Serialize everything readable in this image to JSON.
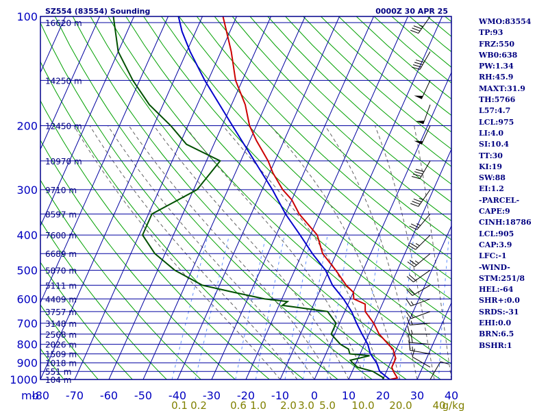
{
  "header": {
    "station": "SZ554 (83554) Sounding",
    "time": "0000Z 30 APR 25"
  },
  "stats": [
    "WMO:83554",
    "TP:93",
    "FRZ:550",
    "WB0:638",
    "PW:1.34",
    "RH:45.9",
    "MAXT:31.9",
    "TH:5766",
    "L57:4.7",
    "LCL:975",
    "LI:4.0",
    "SI:10.4",
    "TT:30",
    "KI:19",
    "SW:88",
    "EI:1.2",
    "-PARCEL-",
    "CAPE:9",
    "CINH:18786",
    "LCL:905",
    "CAP:3.9",
    "LFC:-1",
    "-WIND-",
    "STM:251/8",
    "HEL:-64",
    "SHR+:0.0",
    "SRDS:-31",
    "EHI:0.0",
    "BRN:6.5",
    "BSHR:1"
  ],
  "chart_data": {
    "type": "line",
    "title": "SZ554 (83554) Sounding",
    "xlabel": "",
    "ylabel": "mb",
    "x_ticks": [
      "-80",
      "-70",
      "-60",
      "-50",
      "-40",
      "-30",
      "-20",
      "-10",
      "0",
      "10",
      "20",
      "30",
      "40"
    ],
    "y_ticks": [
      "100",
      "200",
      "300",
      "400",
      "500",
      "600",
      "700",
      "800",
      "900",
      "1000"
    ],
    "y_axis_unit": "mb",
    "xlim": [
      -80,
      40
    ],
    "ylim": [
      1000,
      100
    ],
    "y_scale": "log",
    "mixing_ratio_labels": [
      "0.1",
      "0.2",
      "0.6",
      "1.0",
      "2.0",
      "3.0",
      "5.0",
      "10.0",
      "20.0",
      "40",
      "g/kg"
    ],
    "height_levels": [
      {
        "p": 104,
        "label": "16620 m"
      },
      {
        "p": 150,
        "label": "14250 m"
      },
      {
        "p": 200,
        "label": "12450 m"
      },
      {
        "p": 250,
        "label": "10970 m"
      },
      {
        "p": 300,
        "label": "9710 m"
      },
      {
        "p": 350,
        "label": "8597 m"
      },
      {
        "p": 400,
        "label": "7600 m"
      },
      {
        "p": 450,
        "label": "6689 m"
      },
      {
        "p": 500,
        "label": "5870 m"
      },
      {
        "p": 550,
        "label": "5111 m"
      },
      {
        "p": 600,
        "label": "4409 m"
      },
      {
        "p": 650,
        "label": "3757 m"
      },
      {
        "p": 700,
        "label": "3148 m"
      },
      {
        "p": 750,
        "label": "2568 m"
      },
      {
        "p": 800,
        "label": "2026 m"
      },
      {
        "p": 850,
        "label": "1509 m"
      },
      {
        "p": 900,
        "label": "1018 m"
      },
      {
        "p": 950,
        "label": "551 m"
      },
      {
        "p": 1000,
        "label": "104 m"
      }
    ],
    "series": [
      {
        "color": "#cc0000",
        "points": [
          [
            1000,
            22
          ],
          [
            990,
            24
          ],
          [
            950,
            22
          ],
          [
            925,
            21
          ],
          [
            900,
            21
          ],
          [
            875,
            21
          ],
          [
            850,
            20
          ],
          [
            825,
            19
          ],
          [
            800,
            17
          ],
          [
            750,
            13
          ],
          [
            700,
            10
          ],
          [
            650,
            6
          ],
          [
            620,
            5
          ],
          [
            600,
            1
          ],
          [
            575,
            0
          ],
          [
            550,
            -3
          ],
          [
            500,
            -8
          ],
          [
            450,
            -14
          ],
          [
            400,
            -18
          ],
          [
            350,
            -26
          ],
          [
            320,
            -30
          ],
          [
            300,
            -34
          ],
          [
            270,
            -39
          ],
          [
            250,
            -42
          ],
          [
            220,
            -48
          ],
          [
            200,
            -52
          ],
          [
            175,
            -56
          ],
          [
            150,
            -62
          ],
          [
            125,
            -67
          ],
          [
            110,
            -71
          ],
          [
            100,
            -74
          ]
        ]
      },
      {
        "color": "#005000",
        "points": [
          [
            1000,
            20
          ],
          [
            990,
            20
          ],
          [
            950,
            16
          ],
          [
            925,
            11
          ],
          [
            900,
            9
          ],
          [
            885,
            8
          ],
          [
            860,
            13
          ],
          [
            850,
            7
          ],
          [
            825,
            6
          ],
          [
            800,
            3
          ],
          [
            750,
            -1
          ],
          [
            700,
            -1
          ],
          [
            650,
            -5
          ],
          [
            625,
            -19
          ],
          [
            610,
            -18
          ],
          [
            600,
            -25
          ],
          [
            575,
            -35
          ],
          [
            550,
            -45
          ],
          [
            500,
            -55
          ],
          [
            450,
            -63
          ],
          [
            400,
            -69
          ],
          [
            350,
            -69
          ],
          [
            300,
            -59
          ],
          [
            250,
            -56
          ],
          [
            225,
            -68
          ],
          [
            200,
            -75
          ],
          [
            175,
            -84
          ],
          [
            150,
            -92
          ],
          [
            125,
            -100
          ],
          [
            100,
            -106
          ]
        ]
      },
      {
        "color": "#0000cc",
        "points": [
          [
            1000,
            22
          ],
          [
            950,
            18
          ],
          [
            900,
            16
          ],
          [
            850,
            13
          ],
          [
            800,
            11
          ],
          [
            750,
            8
          ],
          [
            700,
            5
          ],
          [
            650,
            2
          ],
          [
            600,
            -2
          ],
          [
            550,
            -7
          ],
          [
            500,
            -11
          ],
          [
            450,
            -17
          ],
          [
            400,
            -23
          ],
          [
            350,
            -30
          ],
          [
            300,
            -37
          ],
          [
            250,
            -46
          ],
          [
            200,
            -57
          ],
          [
            150,
            -71
          ],
          [
            125,
            -79
          ],
          [
            110,
            -84
          ],
          [
            100,
            -87
          ]
        ]
      }
    ],
    "wind_barbs": [
      {
        "p": 1000,
        "dir": 30,
        "kt": 10
      },
      {
        "p": 925,
        "dir": 300,
        "kt": 10
      },
      {
        "p": 850,
        "dir": 280,
        "kt": 15
      },
      {
        "p": 800,
        "dir": 275,
        "kt": 20
      },
      {
        "p": 750,
        "dir": 270,
        "kt": 15
      },
      {
        "p": 700,
        "dir": 265,
        "kt": 15
      },
      {
        "p": 650,
        "dir": 250,
        "kt": 15
      },
      {
        "p": 600,
        "dir": 250,
        "kt": 15
      },
      {
        "p": 550,
        "dir": 240,
        "kt": 20
      },
      {
        "p": 500,
        "dir": 235,
        "kt": 20
      },
      {
        "p": 450,
        "dir": 230,
        "kt": 25
      },
      {
        "p": 400,
        "dir": 225,
        "kt": 25
      },
      {
        "p": 350,
        "dir": 220,
        "kt": 25
      },
      {
        "p": 300,
        "dir": 215,
        "kt": 35
      },
      {
        "p": 250,
        "dir": 210,
        "kt": 40
      },
      {
        "p": 200,
        "dir": 205,
        "kt": 50
      },
      {
        "p": 175,
        "dir": 200,
        "kt": 50
      },
      {
        "p": 150,
        "dir": 205,
        "kt": 50
      },
      {
        "p": 125,
        "dir": 210,
        "kt": 40
      },
      {
        "p": 100,
        "dir": 215,
        "kt": 35
      }
    ],
    "grid": true,
    "colors": {
      "frame": "#00008b",
      "isotherm": "#0000a0",
      "dry_adiabat": "#00a000",
      "moist_adiabat": "#606060",
      "mixing_ratio": "#6090ff",
      "barb": "#000000"
    }
  }
}
